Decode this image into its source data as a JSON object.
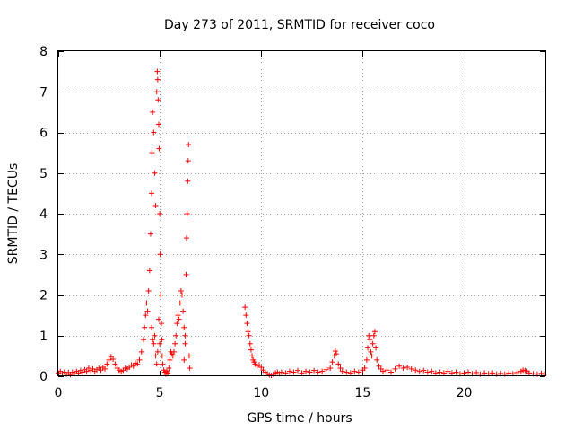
{
  "chart_data": {
    "type": "scatter",
    "title": "Day 273 of 2011, SRMTID for receiver coco",
    "xlabel": "GPS time / hours",
    "ylabel": "SRMTID / TECUs",
    "xlim": [
      0,
      24
    ],
    "ylim": [
      0,
      8
    ],
    "xticks": [
      0,
      5,
      10,
      15,
      20
    ],
    "yticks": [
      0,
      1,
      2,
      3,
      4,
      5,
      6,
      7,
      8
    ],
    "xtick_labels": [
      "0",
      "5",
      "10",
      "15",
      "20"
    ],
    "ytick_labels": [
      "0",
      "1",
      "2",
      "3",
      "4",
      "5",
      "6",
      "7",
      "8"
    ],
    "grid": true,
    "marker": "plus",
    "series": [
      {
        "name": "SRMTID",
        "color": "#ff0000",
        "points": [
          [
            0.0,
            0.08
          ],
          [
            0.1,
            0.12
          ],
          [
            0.2,
            0.06
          ],
          [
            0.3,
            0.1
          ],
          [
            0.4,
            0.05
          ],
          [
            0.5,
            0.09
          ],
          [
            0.6,
            0.04
          ],
          [
            0.7,
            0.1
          ],
          [
            0.8,
            0.06
          ],
          [
            0.9,
            0.12
          ],
          [
            1.0,
            0.08
          ],
          [
            1.1,
            0.14
          ],
          [
            1.2,
            0.1
          ],
          [
            1.3,
            0.16
          ],
          [
            1.4,
            0.12
          ],
          [
            1.5,
            0.2
          ],
          [
            1.6,
            0.14
          ],
          [
            1.7,
            0.18
          ],
          [
            1.8,
            0.12
          ],
          [
            1.9,
            0.16
          ],
          [
            2.0,
            0.2
          ],
          [
            2.1,
            0.15
          ],
          [
            2.2,
            0.22
          ],
          [
            2.3,
            0.18
          ],
          [
            2.4,
            0.3
          ],
          [
            2.5,
            0.4
          ],
          [
            2.6,
            0.48
          ],
          [
            2.7,
            0.42
          ],
          [
            2.8,
            0.3
          ],
          [
            2.9,
            0.2
          ],
          [
            3.0,
            0.15
          ],
          [
            3.1,
            0.12
          ],
          [
            3.2,
            0.15
          ],
          [
            3.3,
            0.2
          ],
          [
            3.4,
            0.18
          ],
          [
            3.5,
            0.22
          ],
          [
            3.6,
            0.28
          ],
          [
            3.7,
            0.25
          ],
          [
            3.8,
            0.32
          ],
          [
            3.9,
            0.3
          ],
          [
            4.0,
            0.4
          ],
          [
            4.1,
            0.6
          ],
          [
            4.2,
            0.9
          ],
          [
            4.25,
            1.2
          ],
          [
            4.3,
            1.5
          ],
          [
            4.35,
            1.8
          ],
          [
            4.4,
            1.6
          ],
          [
            4.45,
            2.1
          ],
          [
            4.5,
            2.6
          ],
          [
            4.55,
            3.5
          ],
          [
            4.6,
            4.5
          ],
          [
            4.62,
            5.5
          ],
          [
            4.65,
            6.5
          ],
          [
            4.7,
            6.0
          ],
          [
            4.75,
            5.0
          ],
          [
            4.8,
            4.2
          ],
          [
            4.85,
            7.0
          ],
          [
            4.88,
            7.5
          ],
          [
            4.9,
            7.3
          ],
          [
            4.92,
            6.8
          ],
          [
            4.95,
            6.2
          ],
          [
            4.97,
            5.6
          ],
          [
            5.0,
            4.0
          ],
          [
            5.02,
            3.0
          ],
          [
            5.05,
            2.0
          ],
          [
            5.08,
            1.3
          ],
          [
            5.1,
            0.9
          ],
          [
            5.12,
            0.5
          ],
          [
            5.15,
            0.3
          ],
          [
            5.2,
            0.15
          ],
          [
            5.25,
            0.1
          ],
          [
            4.7,
            0.8
          ],
          [
            4.75,
            1.0
          ],
          [
            4.8,
            0.5
          ],
          [
            4.85,
            0.3
          ],
          [
            4.9,
            0.6
          ],
          [
            4.95,
            1.4
          ],
          [
            5.0,
            0.8
          ],
          [
            4.6,
            1.2
          ],
          [
            4.65,
            0.9
          ],
          [
            5.3,
            0.05
          ],
          [
            5.35,
            0.12
          ],
          [
            5.4,
            0.08
          ],
          [
            5.45,
            0.2
          ],
          [
            5.5,
            0.4
          ],
          [
            5.55,
            0.6
          ],
          [
            5.6,
            0.55
          ],
          [
            5.65,
            0.5
          ],
          [
            5.7,
            0.6
          ],
          [
            5.75,
            0.8
          ],
          [
            5.8,
            1.0
          ],
          [
            5.85,
            1.3
          ],
          [
            5.9,
            1.5
          ],
          [
            5.95,
            1.4
          ],
          [
            6.0,
            1.8
          ],
          [
            6.05,
            2.1
          ],
          [
            6.1,
            2.0
          ],
          [
            6.15,
            1.6
          ],
          [
            6.2,
            1.2
          ],
          [
            6.25,
            0.8
          ],
          [
            6.3,
            2.5
          ],
          [
            6.32,
            3.4
          ],
          [
            6.35,
            4.0
          ],
          [
            6.38,
            4.8
          ],
          [
            6.4,
            5.3
          ],
          [
            6.42,
            5.7
          ],
          [
            6.45,
            0.5
          ],
          [
            6.48,
            0.2
          ],
          [
            6.2,
            0.4
          ],
          [
            6.25,
            1.0
          ],
          [
            9.2,
            1.7
          ],
          [
            9.25,
            1.5
          ],
          [
            9.3,
            1.3
          ],
          [
            9.35,
            1.1
          ],
          [
            9.4,
            1.0
          ],
          [
            9.45,
            0.8
          ],
          [
            9.5,
            0.65
          ],
          [
            9.55,
            0.5
          ],
          [
            9.6,
            0.4
          ],
          [
            9.65,
            0.35
          ],
          [
            9.7,
            0.3
          ],
          [
            9.8,
            0.25
          ],
          [
            9.9,
            0.28
          ],
          [
            10.0,
            0.22
          ],
          [
            10.1,
            0.15
          ],
          [
            10.2,
            0.1
          ],
          [
            10.3,
            0.06
          ],
          [
            10.4,
            0.03
          ],
          [
            10.5,
            0.02
          ],
          [
            10.6,
            0.05
          ],
          [
            10.7,
            0.08
          ],
          [
            10.8,
            0.1
          ],
          [
            10.9,
            0.06
          ],
          [
            11.0,
            0.1
          ],
          [
            11.2,
            0.08
          ],
          [
            11.4,
            0.12
          ],
          [
            11.6,
            0.1
          ],
          [
            11.8,
            0.14
          ],
          [
            12.0,
            0.08
          ],
          [
            12.2,
            0.12
          ],
          [
            12.4,
            0.1
          ],
          [
            12.6,
            0.14
          ],
          [
            12.8,
            0.1
          ],
          [
            13.0,
            0.12
          ],
          [
            13.2,
            0.16
          ],
          [
            13.4,
            0.2
          ],
          [
            13.5,
            0.35
          ],
          [
            13.6,
            0.5
          ],
          [
            13.65,
            0.62
          ],
          [
            13.7,
            0.55
          ],
          [
            13.8,
            0.3
          ],
          [
            13.9,
            0.2
          ],
          [
            14.0,
            0.12
          ],
          [
            14.2,
            0.1
          ],
          [
            14.4,
            0.08
          ],
          [
            14.6,
            0.12
          ],
          [
            14.8,
            0.1
          ],
          [
            15.0,
            0.15
          ],
          [
            15.1,
            0.2
          ],
          [
            15.2,
            0.4
          ],
          [
            15.25,
            0.7
          ],
          [
            15.3,
            1.0
          ],
          [
            15.35,
            0.9
          ],
          [
            15.4,
            0.6
          ],
          [
            15.45,
            0.5
          ],
          [
            15.5,
            0.8
          ],
          [
            15.55,
            1.0
          ],
          [
            15.6,
            1.1
          ],
          [
            15.65,
            0.7
          ],
          [
            15.7,
            0.4
          ],
          [
            15.8,
            0.25
          ],
          [
            15.9,
            0.18
          ],
          [
            16.0,
            0.12
          ],
          [
            16.2,
            0.15
          ],
          [
            16.4,
            0.1
          ],
          [
            16.6,
            0.18
          ],
          [
            16.8,
            0.25
          ],
          [
            17.0,
            0.2
          ],
          [
            17.2,
            0.22
          ],
          [
            17.4,
            0.18
          ],
          [
            17.6,
            0.15
          ],
          [
            17.8,
            0.12
          ],
          [
            18.0,
            0.14
          ],
          [
            18.2,
            0.1
          ],
          [
            18.4,
            0.12
          ],
          [
            18.6,
            0.08
          ],
          [
            18.8,
            0.1
          ],
          [
            19.0,
            0.08
          ],
          [
            19.2,
            0.12
          ],
          [
            19.4,
            0.08
          ],
          [
            19.6,
            0.1
          ],
          [
            19.8,
            0.06
          ],
          [
            20.0,
            0.08
          ],
          [
            20.2,
            0.1
          ],
          [
            20.4,
            0.06
          ],
          [
            20.6,
            0.09
          ],
          [
            20.8,
            0.05
          ],
          [
            21.0,
            0.08
          ],
          [
            21.2,
            0.06
          ],
          [
            21.4,
            0.08
          ],
          [
            21.6,
            0.05
          ],
          [
            21.8,
            0.07
          ],
          [
            22.0,
            0.05
          ],
          [
            22.2,
            0.08
          ],
          [
            22.4,
            0.06
          ],
          [
            22.6,
            0.09
          ],
          [
            22.8,
            0.12
          ],
          [
            22.9,
            0.15
          ],
          [
            23.0,
            0.14
          ],
          [
            23.1,
            0.12
          ],
          [
            23.2,
            0.08
          ],
          [
            23.4,
            0.06
          ],
          [
            23.6,
            0.05
          ],
          [
            23.8,
            0.07
          ],
          [
            23.95,
            0.05
          ]
        ]
      }
    ]
  }
}
